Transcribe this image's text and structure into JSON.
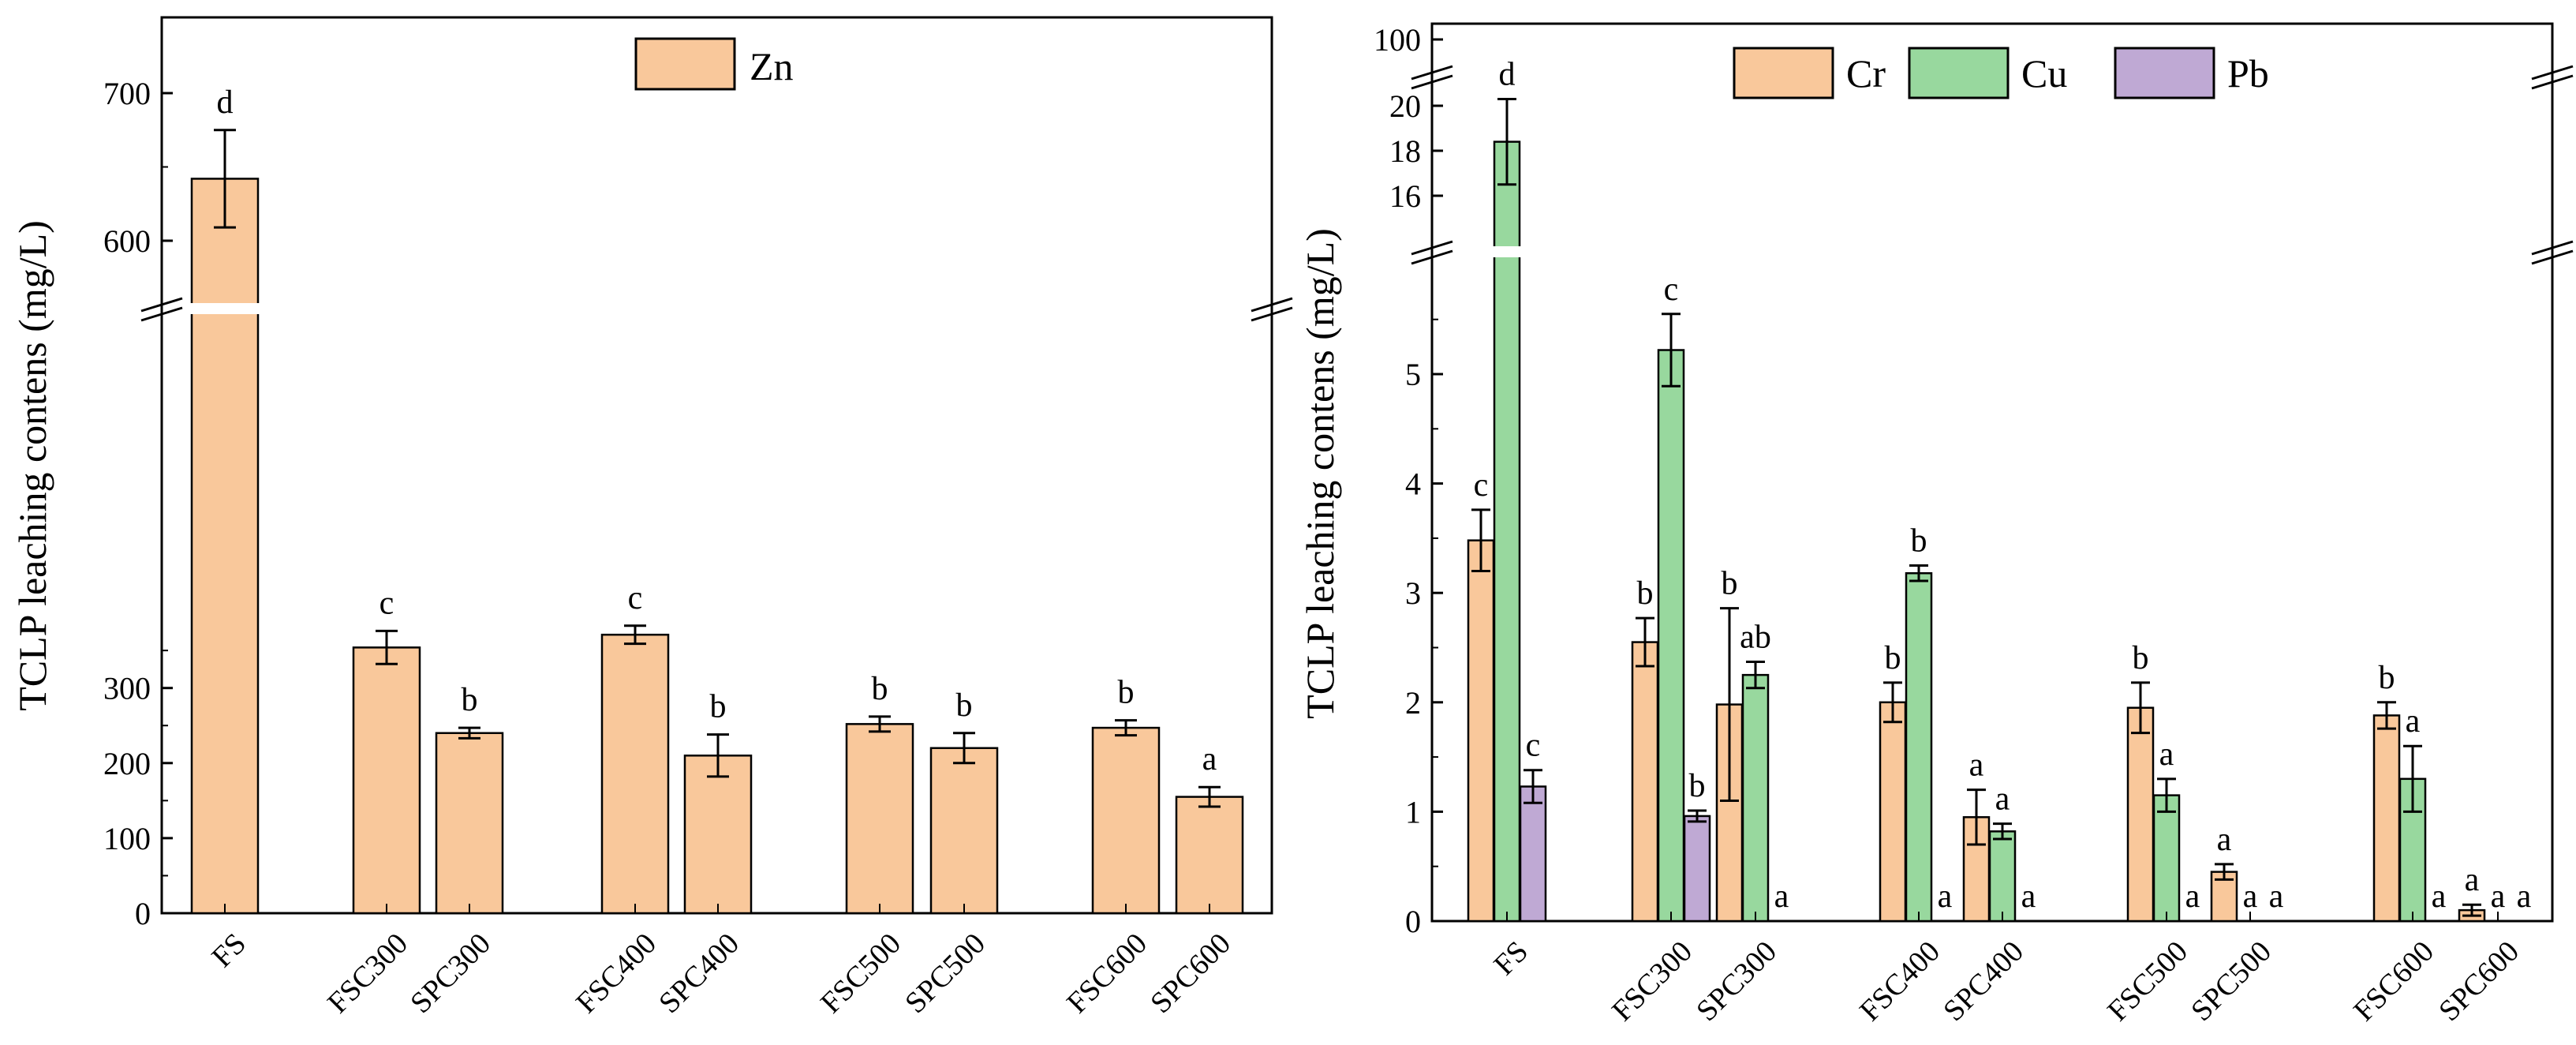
{
  "colors": {
    "Zn": "#F9C89B",
    "Cr": "#F9C89B",
    "Cu": "#98D89E",
    "Pb": "#BFA9D4",
    "axis": "#000000",
    "background": "#ffffff"
  },
  "chart_data": [
    {
      "type": "bar",
      "ylabel": "TCLP leaching contens (mg/L)",
      "xlabel": "",
      "legend_position": "top-center",
      "y_axis_break": {
        "lower": [
          0,
          400
        ],
        "upper": [
          570,
          730
        ]
      },
      "yticks": [
        "0",
        "100",
        "200",
        "300",
        "600",
        "700"
      ],
      "groups": [
        [
          "FS"
        ],
        [
          "FSC300",
          "SPC300"
        ],
        [
          "FSC400",
          "SPC400"
        ],
        [
          "FSC500",
          "SPC500"
        ],
        [
          "FSC600",
          "SPC600"
        ]
      ],
      "categories": [
        "FS",
        "FSC300",
        "SPC300",
        "FSC400",
        "SPC400",
        "FSC500",
        "SPC500",
        "FSC600",
        "SPC600"
      ],
      "series": [
        {
          "name": "Zn",
          "values": [
            642,
            354,
            240,
            371,
            210,
            252,
            220,
            247,
            155
          ],
          "errors": [
            33,
            22,
            7,
            12,
            28,
            10,
            20,
            10,
            13
          ],
          "labels": [
            "d",
            "c",
            "b",
            "c",
            "b",
            "b",
            "b",
            "b",
            "a"
          ]
        }
      ]
    },
    {
      "type": "bar",
      "ylabel": "TCLP leaching contens (mg/L)",
      "xlabel": "",
      "legend_position": "top-center",
      "y_axis_break": {
        "lower": [
          0,
          6
        ],
        "middle": [
          15,
          21
        ],
        "upper": [
          90,
          105
        ]
      },
      "yticks": [
        "0",
        "1",
        "2",
        "3",
        "4",
        "5",
        "16",
        "18",
        "20",
        "100"
      ],
      "categories": [
        "FS",
        "FSC300",
        "SPC300",
        "FSC400",
        "SPC400",
        "FSC500",
        "SPC500",
        "FSC600",
        "SPC600"
      ],
      "series": [
        {
          "name": "Cr",
          "values": [
            3.48,
            2.55,
            1.98,
            2.0,
            0.95,
            1.95,
            0.45,
            1.88,
            0.1
          ],
          "errors": [
            0.28,
            0.22,
            0.88,
            0.18,
            0.25,
            0.23,
            0.07,
            0.12,
            0.05
          ],
          "labels": [
            "c",
            "b",
            "b",
            "b",
            "a",
            "b",
            "a",
            "b",
            "a"
          ]
        },
        {
          "name": "Cu",
          "values": [
            18.4,
            5.22,
            2.25,
            3.18,
            0.82,
            1.15,
            0,
            1.3,
            0
          ],
          "errors": [
            1.9,
            0.33,
            0.12,
            0.07,
            0.07,
            0.15,
            0,
            0.3,
            0
          ],
          "labels": [
            "d",
            "c",
            "ab",
            "b",
            "a",
            "a",
            "a",
            "a",
            "a"
          ]
        },
        {
          "name": "Pb",
          "values": [
            1.23,
            0.96,
            0,
            0,
            0,
            0,
            0,
            0,
            0
          ],
          "errors": [
            0.15,
            0.05,
            0,
            0,
            0,
            0,
            0,
            0,
            0
          ],
          "labels": [
            "c",
            "b",
            "a",
            "a",
            "a",
            "a",
            "a",
            "a",
            "a"
          ]
        }
      ]
    }
  ]
}
